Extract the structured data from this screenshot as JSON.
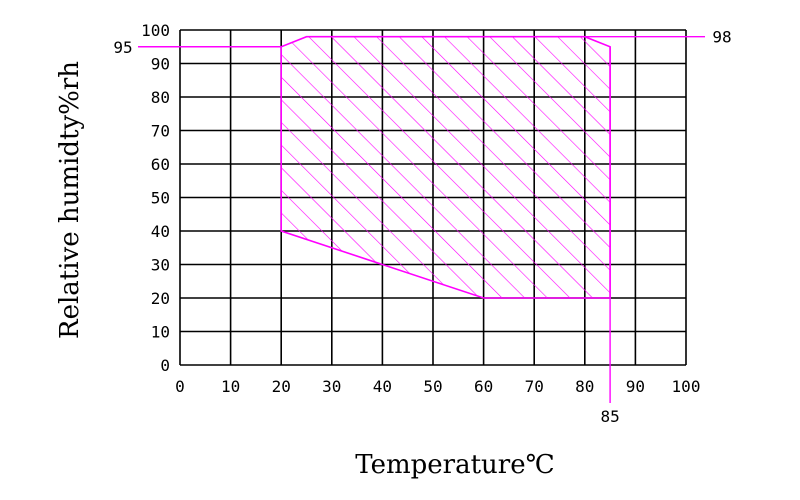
{
  "chart_data": {
    "type": "area",
    "xlabel": "Temperature℃",
    "ylabel": "Relative humidty%rh",
    "xlim": [
      0,
      100
    ],
    "ylim": [
      0,
      100
    ],
    "x_ticks": [
      0,
      10,
      20,
      30,
      40,
      50,
      60,
      70,
      80,
      90,
      100
    ],
    "y_ticks": [
      0,
      10,
      20,
      30,
      40,
      50,
      60,
      70,
      80,
      90,
      100
    ],
    "grid": true,
    "region": {
      "pattern": "diagonal-hatch",
      "color": "#ff00ff",
      "points": [
        [
          20,
          40
        ],
        [
          20,
          95
        ],
        [
          25,
          98
        ],
        [
          80,
          98
        ],
        [
          85,
          95
        ],
        [
          85,
          20
        ],
        [
          60,
          20
        ],
        [
          20,
          40
        ]
      ]
    },
    "callouts": [
      {
        "label": "95",
        "axis": "y",
        "value": 95,
        "x_from": 20,
        "side": "left"
      },
      {
        "label": "98",
        "axis": "y",
        "value": 98,
        "x_from": 80,
        "side": "right"
      },
      {
        "label": "85",
        "axis": "x",
        "value": 85,
        "y_from": 95,
        "side": "bottom"
      }
    ],
    "colors": {
      "grid": "#000000",
      "region": "#ff00ff"
    }
  }
}
